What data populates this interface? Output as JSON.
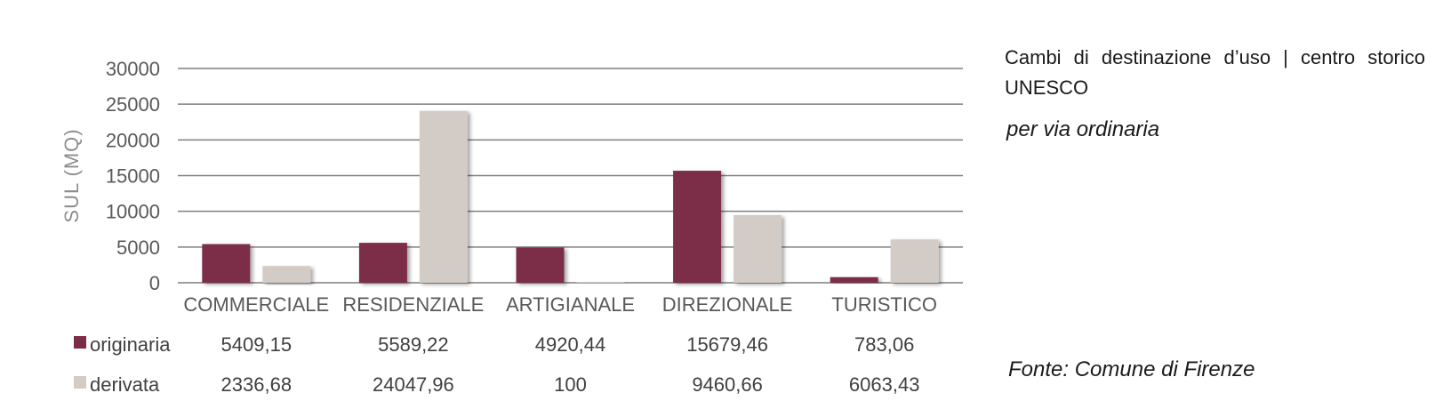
{
  "chart_data": {
    "type": "bar",
    "ylabel": "SUL (MQ)",
    "ylim": [
      0,
      30000
    ],
    "yticks": [
      0,
      5000,
      10000,
      15000,
      20000,
      25000,
      30000
    ],
    "grid": true,
    "categories": [
      "COMMERCIALE",
      "RESIDENZIALE",
      "ARTIGIANALE",
      "DIREZIONALE",
      "TURISTICO"
    ],
    "series": [
      {
        "name": "originaria",
        "color": "#7b2d48",
        "values": [
          5409.15,
          5589.22,
          4920.44,
          15679.46,
          783.06
        ],
        "labels": [
          "5409,15",
          "5589,22",
          "4920,44",
          "15679,46",
          "783,06"
        ]
      },
      {
        "name": "derivata",
        "color": "#d2cbc6",
        "values": [
          2336.68,
          24047.96,
          100,
          9460.66,
          6063.43
        ],
        "labels": [
          "2336,68",
          "24047,96",
          "100",
          "9460,66",
          "6063,43"
        ]
      }
    ],
    "legend_placement": "data table below the axis"
  },
  "side": {
    "title": "Cambi di destinazione d’uso | centro storico UNESCO",
    "subtitle": "per via ordinaria",
    "source": "Fonte: Comune di Firenze"
  }
}
